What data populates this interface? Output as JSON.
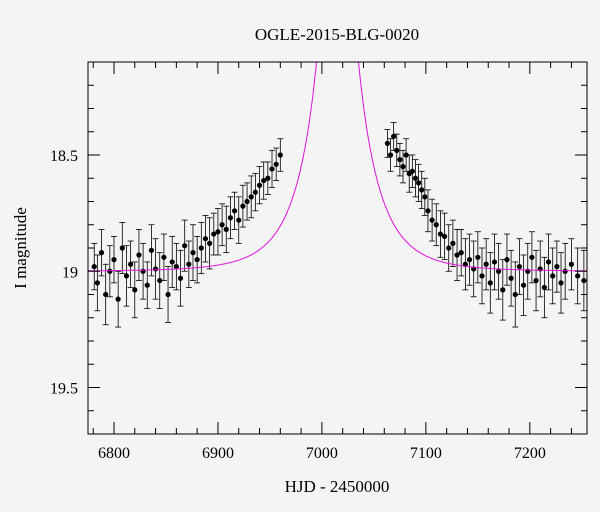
{
  "chart_data": {
    "type": "scatter",
    "title": "OGLE-2015-BLG-0020",
    "xlabel": "HJD - 2450000",
    "ylabel": "I magnitude",
    "xlim": [
      6775,
      7255
    ],
    "ylim": [
      19.7,
      18.1
    ],
    "y_inverted": true,
    "xticks": [
      6800,
      6900,
      7000,
      7100,
      7200
    ],
    "yticks": [
      18.5,
      19,
      19.5
    ],
    "grid": false,
    "series": [
      {
        "kind": "points_with_errorbars",
        "color": "#000000",
        "x": [
          6781,
          6784,
          6788,
          6792,
          6796,
          6800,
          6804,
          6808,
          6812,
          6816,
          6820,
          6824,
          6828,
          6832,
          6836,
          6840,
          6844,
          6848,
          6852,
          6856,
          6860,
          6864,
          6868,
          6872,
          6876,
          6880,
          6884,
          6888,
          6892,
          6896,
          6900,
          6904,
          6908,
          6912,
          6916,
          6920,
          6924,
          6928,
          6932,
          6936,
          6940,
          6944,
          6948,
          6952,
          6956,
          6960,
          7063,
          7066,
          7069,
          7072,
          7075,
          7078,
          7081,
          7084,
          7087,
          7090,
          7093,
          7096,
          7099,
          7102,
          7106,
          7110,
          7114,
          7118,
          7122,
          7126,
          7130,
          7134,
          7138,
          7142,
          7146,
          7150,
          7154,
          7158,
          7162,
          7166,
          7170,
          7174,
          7178,
          7182,
          7186,
          7190,
          7194,
          7198,
          7202,
          7206,
          7210,
          7214,
          7218,
          7222,
          7226,
          7230,
          7234,
          7240,
          7246,
          7252
        ],
        "y": [
          18.98,
          19.05,
          18.92,
          19.1,
          19.0,
          18.95,
          19.12,
          18.9,
          19.02,
          18.97,
          19.08,
          18.93,
          19.0,
          19.06,
          18.91,
          18.99,
          19.04,
          18.94,
          19.1,
          18.96,
          18.98,
          19.03,
          18.89,
          18.97,
          18.92,
          18.95,
          18.9,
          18.86,
          18.88,
          18.84,
          18.83,
          18.8,
          18.82,
          18.77,
          18.74,
          18.78,
          18.72,
          18.7,
          18.68,
          18.66,
          18.63,
          18.61,
          18.6,
          18.56,
          18.54,
          18.5,
          18.45,
          18.5,
          18.42,
          18.48,
          18.52,
          18.55,
          18.5,
          18.58,
          18.57,
          18.6,
          18.62,
          18.65,
          18.68,
          18.74,
          18.78,
          18.8,
          18.84,
          18.85,
          18.9,
          18.88,
          18.93,
          18.92,
          18.97,
          18.95,
          18.99,
          18.94,
          19.02,
          18.97,
          19.05,
          18.96,
          19.0,
          19.08,
          18.95,
          19.03,
          19.1,
          18.98,
          19.06,
          19.0,
          18.94,
          19.04,
          18.99,
          19.07,
          18.96,
          19.02,
          18.98,
          19.05,
          19.0,
          18.97,
          19.02,
          19.04
        ],
        "err": [
          0.1,
          0.12,
          0.1,
          0.13,
          0.11,
          0.1,
          0.12,
          0.11,
          0.13,
          0.1,
          0.12,
          0.11,
          0.12,
          0.1,
          0.11,
          0.13,
          0.12,
          0.1,
          0.12,
          0.11,
          0.1,
          0.12,
          0.11,
          0.1,
          0.12,
          0.1,
          0.11,
          0.1,
          0.11,
          0.09,
          0.1,
          0.09,
          0.1,
          0.09,
          0.08,
          0.1,
          0.09,
          0.08,
          0.09,
          0.08,
          0.08,
          0.08,
          0.07,
          0.08,
          0.07,
          0.07,
          0.06,
          0.07,
          0.06,
          0.07,
          0.07,
          0.07,
          0.07,
          0.08,
          0.07,
          0.08,
          0.08,
          0.08,
          0.08,
          0.09,
          0.09,
          0.09,
          0.1,
          0.1,
          0.1,
          0.1,
          0.11,
          0.1,
          0.11,
          0.11,
          0.12,
          0.11,
          0.12,
          0.11,
          0.13,
          0.12,
          0.12,
          0.13,
          0.11,
          0.12,
          0.14,
          0.12,
          0.13,
          0.12,
          0.11,
          0.13,
          0.12,
          0.13,
          0.12,
          0.12,
          0.11,
          0.13,
          0.12,
          0.11,
          0.12,
          0.13
        ]
      },
      {
        "kind": "model_curve",
        "color": "#e010e0",
        "baseline_mag": 19.0,
        "t0": 7015,
        "tE": 43,
        "u0": 0.05
      }
    ]
  }
}
